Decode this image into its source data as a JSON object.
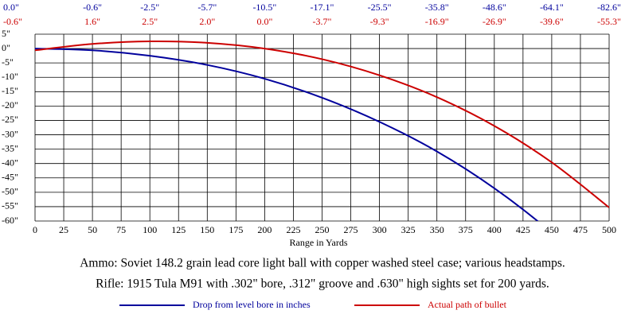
{
  "chart_data": {
    "type": "line",
    "x_label": "Range in Yards",
    "captions": [
      "Ammo:  Soviet 148.2 grain lead core light ball with copper washed steel case; various headstamps.",
      "Rifle:  1915 Tula M91 with .302\" bore, .312\" groove and .630\" high sights set for 200 yards."
    ],
    "x": [
      0,
      50,
      100,
      150,
      200,
      250,
      300,
      350,
      400,
      450,
      500
    ],
    "series": [
      {
        "name": "Drop from level bore in inches",
        "color": "#00009c",
        "values": [
          0.0,
          -0.6,
          -2.5,
          -5.7,
          -10.5,
          -17.1,
          -25.5,
          -35.8,
          -48.6,
          -64.1,
          -82.6
        ],
        "value_labels": [
          "0.0\"",
          "-0.6\"",
          "-2.5\"",
          "-5.7\"",
          "-10.5\"",
          "-17.1\"",
          "-25.5\"",
          "-35.8\"",
          "-48.6\"",
          "-64.1\"",
          "-82.6\""
        ]
      },
      {
        "name": "Actual path of bullet",
        "color": "#cc0000",
        "values": [
          -0.6,
          1.6,
          2.5,
          2.0,
          0.0,
          -3.7,
          -9.3,
          -16.9,
          -26.9,
          -39.6,
          -55.3
        ],
        "value_labels": [
          "-0.6\"",
          "1.6\"",
          "2.5\"",
          "2.0\"",
          "0.0\"",
          "-3.7\"",
          "-9.3\"",
          "-16.9\"",
          "-26.9\"",
          "-39.6\"",
          "-55.3\""
        ]
      }
    ],
    "xlim": [
      0,
      500
    ],
    "xticks": [
      0,
      25,
      50,
      75,
      100,
      125,
      150,
      175,
      200,
      225,
      250,
      275,
      300,
      325,
      350,
      375,
      400,
      425,
      450,
      475,
      500
    ],
    "ylim": [
      -60,
      5
    ],
    "yticks": [
      {
        "value": 5,
        "label": "5\""
      },
      {
        "value": 0,
        "label": "0\""
      },
      {
        "value": -5,
        "label": "-5\""
      },
      {
        "value": -10,
        "label": "-10\""
      },
      {
        "value": -15,
        "label": "-15\""
      },
      {
        "value": -20,
        "label": "-20\""
      },
      {
        "value": -25,
        "label": "-25\""
      },
      {
        "value": -30,
        "label": "-30\""
      },
      {
        "value": -35,
        "label": "-35\""
      },
      {
        "value": -40,
        "label": "-40\""
      },
      {
        "value": -45,
        "label": "-45\""
      },
      {
        "value": -50,
        "label": "-50\""
      },
      {
        "value": -55,
        "label": "-55\""
      },
      {
        "value": -60,
        "label": "-60\""
      }
    ],
    "grid": true
  }
}
